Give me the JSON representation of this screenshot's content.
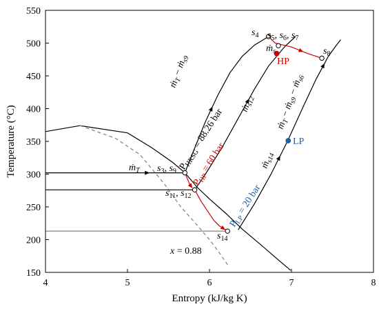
{
  "chart_data": {
    "type": "line",
    "xlabel": "Entropy (kJ/kg K)",
    "ylabel": "Temperature (°C)",
    "xlim": [
      4,
      8
    ],
    "ylim": [
      150,
      550
    ],
    "x_ticks": [
      "4",
      "5",
      "6",
      "7",
      "8"
    ],
    "y_ticks": [
      "150",
      "200",
      "250",
      "300",
      "350",
      "400",
      "450",
      "500",
      "550"
    ],
    "grid": false,
    "legend": "none",
    "series": [
      {
        "style": "solid",
        "color": "#000000",
        "points": [
          [
            4.0,
            365
          ],
          [
            4.42,
            374
          ],
          [
            5.0,
            363
          ],
          [
            5.3,
            340
          ],
          [
            5.55,
            318
          ],
          [
            5.7,
            302
          ],
          [
            5.85,
            280
          ],
          [
            6.0,
            262
          ],
          [
            6.2,
            240
          ],
          [
            6.4,
            216
          ],
          [
            6.6,
            195
          ],
          [
            6.85,
            168
          ],
          [
            6.99,
            153
          ]
        ]
      },
      {
        "style": "dashed",
        "color": "#808080",
        "points": [
          [
            4.42,
            374
          ],
          [
            4.85,
            355
          ],
          [
            5.15,
            330
          ],
          [
            5.45,
            285
          ],
          [
            5.65,
            250
          ],
          [
            5.85,
            222
          ],
          [
            6.0,
            200
          ],
          [
            6.12,
            180
          ],
          [
            6.23,
            160
          ]
        ]
      },
      {
        "style": "solid",
        "color": "#000000",
        "points": [
          [
            4.0,
            302
          ],
          [
            5.7,
            302
          ],
          [
            5.82,
            340
          ],
          [
            5.95,
            380
          ],
          [
            6.1,
            420
          ],
          [
            6.25,
            455
          ],
          [
            6.4,
            480
          ],
          [
            6.55,
            497
          ],
          [
            6.72,
            510
          ]
        ]
      },
      {
        "style": "solid",
        "color": "#000000",
        "points": [
          [
            4.0,
            276
          ],
          [
            5.82,
            276
          ],
          [
            5.95,
            300
          ],
          [
            6.15,
            340
          ],
          [
            6.35,
            385
          ],
          [
            6.55,
            430
          ],
          [
            6.72,
            465
          ],
          [
            6.92,
            495
          ],
          [
            7.05,
            510
          ]
        ]
      },
      {
        "style": "solid",
        "color": "#000000",
        "points": [
          [
            6.35,
            215
          ],
          [
            6.55,
            255
          ],
          [
            6.75,
            300
          ],
          [
            6.95,
            350
          ],
          [
            7.15,
            405
          ],
          [
            7.3,
            445
          ],
          [
            7.45,
            480
          ],
          [
            7.55,
            497
          ],
          [
            7.6,
            505
          ]
        ]
      },
      {
        "style": "solid",
        "color": "#808080",
        "points": [
          [
            4.0,
            213
          ],
          [
            6.22,
            213
          ]
        ]
      },
      {
        "style": "solid",
        "color": "#cc0000",
        "points": [
          [
            6.72,
            510
          ],
          [
            6.8,
            500
          ],
          [
            7.0,
            494
          ],
          [
            7.2,
            484
          ],
          [
            7.37,
            477
          ]
        ]
      },
      {
        "style": "solid",
        "color": "#cc0000",
        "points": [
          [
            5.82,
            276
          ],
          [
            5.9,
            258
          ],
          [
            5.98,
            243
          ],
          [
            6.05,
            230
          ],
          [
            6.12,
            221
          ],
          [
            6.22,
            213
          ]
        ]
      },
      {
        "style": "solid",
        "color": "#cc0000",
        "points": [
          [
            5.7,
            302
          ],
          [
            5.73,
            293
          ],
          [
            5.76,
            284
          ],
          [
            5.79,
            279
          ]
        ]
      }
    ],
    "state_points": [
      {
        "label": "s4",
        "x": 6.72,
        "y": 510
      },
      {
        "label": "s5, s6, s7",
        "x": 6.84,
        "y": 496
      },
      {
        "label": "s8",
        "x": 7.37,
        "y": 477
      },
      {
        "label": "s3, s9",
        "x": 5.7,
        "y": 302
      },
      {
        "label": "s11, s12",
        "x": 5.82,
        "y": 276
      },
      {
        "label": "s14",
        "x": 6.22,
        "y": 213
      }
    ],
    "markers": [
      {
        "label": "HP",
        "x": 6.82,
        "y": 484,
        "color": "#cc0000"
      },
      {
        "label": "LP",
        "x": 6.96,
        "y": 351,
        "color": "#1f5fa8"
      }
    ],
    "annotations": {
      "p_hrsg": "P",
      "p_hrsg_sub": "HRSG",
      "p_hrsg_val": " = 88.26 bar",
      "p_hp": "P",
      "p_hp_sub": "HP",
      "p_hp_val": " = 60 bar",
      "p_lp": "P",
      "p_lp_sub": "LP",
      "p_lp_val": " = 20 bar",
      "quality": "x",
      "quality_val": " = 0.88",
      "m": "ṁ",
      "sub_T": "T",
      "sub_s9": "s9",
      "sub_s6": "s6",
      "sub_s12": "s12",
      "sub_s14": "s14",
      "sub_s": "s",
      "minus": " − ",
      "s_letter": "s",
      "n3": "3",
      "n9": "9",
      "n11": "11",
      "n12": "12",
      "n14": "14",
      "n4": "4",
      "n5": "5",
      "n6": "6",
      "n7": "7",
      "n8": "8",
      "comma": ", "
    }
  }
}
